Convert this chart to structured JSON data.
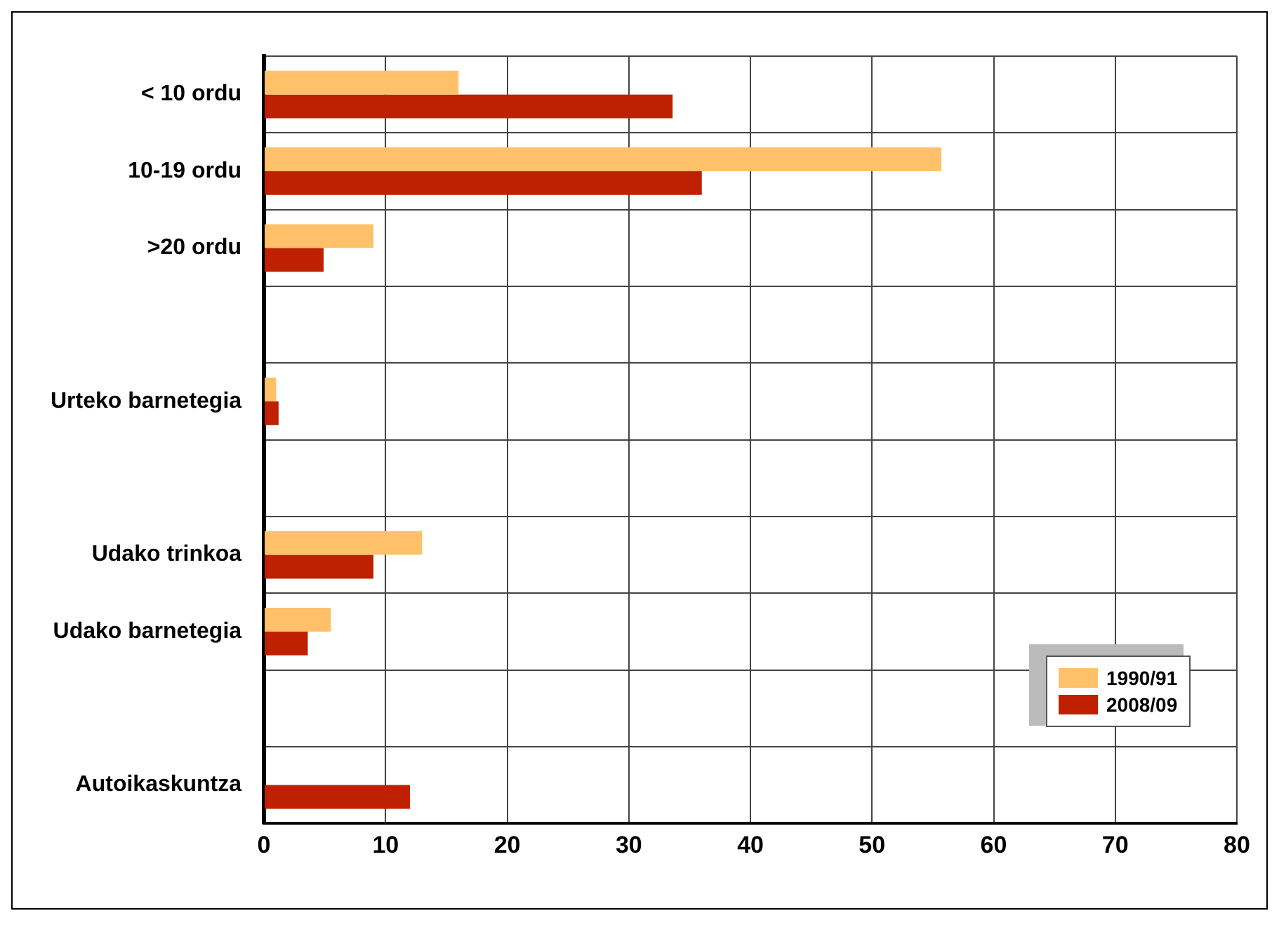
{
  "chart_data": {
    "type": "bar",
    "orientation": "horizontal",
    "categories": [
      "< 10 ordu",
      "10-19 ordu",
      ">20 ordu",
      null,
      "Urteko barnetegia",
      null,
      "Udako trinkoa",
      "Udako barnetegia",
      null,
      "Autoikaskuntza"
    ],
    "series": [
      {
        "name": "1990/91",
        "color": "#fec16a",
        "values": [
          16,
          55.7,
          9,
          null,
          1,
          null,
          13,
          5.5,
          null,
          null
        ]
      },
      {
        "name": "2008/09",
        "color": "#be2000",
        "values": [
          33.6,
          36,
          4.9,
          null,
          1.2,
          null,
          9,
          3.6,
          null,
          12
        ]
      }
    ],
    "xlim": [
      0,
      80
    ],
    "xticks": [
      0,
      10,
      20,
      30,
      40,
      50,
      60,
      70,
      80
    ],
    "grid": true,
    "legend": "bottom right"
  }
}
